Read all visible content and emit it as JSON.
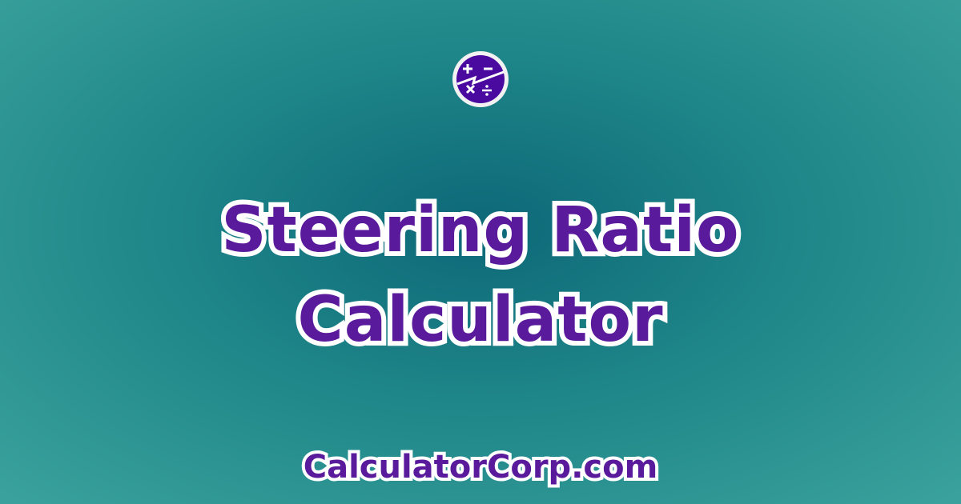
{
  "logo": {
    "icon": "calculator-symbols-icon",
    "colors": {
      "fill": "#4a0aa0",
      "ring": "#f2f2f2"
    }
  },
  "title": {
    "line1": "Steering Ratio",
    "line2": "Calculator"
  },
  "site": "CalculatorCorp.com",
  "colors": {
    "text": "#5a1a9c",
    "outline": "#ffffff",
    "background": "#1e8588"
  }
}
